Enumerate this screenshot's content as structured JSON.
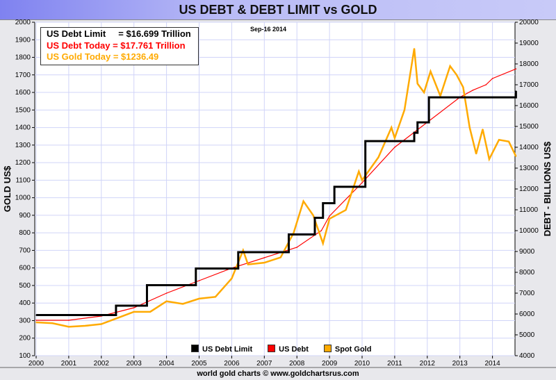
{
  "title": "US DEBT & DEBT LIMIT vs GOLD",
  "date_label": "Sep-16  2014",
  "info": {
    "limit": "US Debt Limit     = $16.699 Trillion",
    "debt": "US Debt Today = $17.761 Trillion",
    "gold": "US Gold Today = $1236.49"
  },
  "credit": "world gold charts © www.goldchartsrus.com",
  "colors": {
    "limit": "#000000",
    "debt": "#ff0000",
    "gold": "#ffaa00",
    "grid": "#d0d4f8"
  },
  "chart_data": {
    "type": "line",
    "ylabel_left": "GOLD US$",
    "ylabel_right": "DEBT - BILLIONS US$",
    "ylim_left": [
      100,
      2000
    ],
    "ylim_right": [
      4000,
      20000
    ],
    "xlim": [
      2000,
      2014.72
    ],
    "x_ticks": [
      "2000",
      "2001",
      "2002",
      "2003",
      "2004",
      "2005",
      "2006",
      "2007",
      "2008",
      "2009",
      "2010",
      "2011",
      "2012",
      "2013",
      "2014"
    ],
    "y_ticks_left": [
      100,
      200,
      300,
      400,
      500,
      600,
      700,
      800,
      900,
      1000,
      1100,
      1200,
      1300,
      1400,
      1500,
      1600,
      1700,
      1800,
      1900,
      2000
    ],
    "y_ticks_right": [
      4000,
      5000,
      6000,
      7000,
      8000,
      9000,
      10000,
      11000,
      12000,
      13000,
      14000,
      15000,
      16000,
      17000,
      18000,
      19000,
      20000
    ],
    "grid": true,
    "legend_position": "bottom",
    "series": [
      {
        "name": "US Debt Limit",
        "axis": "right",
        "step": true,
        "x": [
          2000,
          2002.45,
          2003.4,
          2004.9,
          2006.2,
          2007.75,
          2008.55,
          2008.8,
          2009.15,
          2010.1,
          2011.6,
          2011.7,
          2012.05,
          2014.72
        ],
        "y": [
          5950,
          6400,
          7384,
          8184,
          8965,
          9815,
          10615,
          11315,
          12104,
          14294,
          14694,
          15194,
          16394,
          16699
        ]
      },
      {
        "name": "US Debt",
        "axis": "right",
        "x": [
          2000,
          2001,
          2002,
          2003,
          2004,
          2005,
          2006,
          2007,
          2008,
          2008.75,
          2009,
          2010,
          2011,
          2012,
          2013,
          2013.4,
          2013.8,
          2014,
          2014.72
        ],
        "y": [
          5700,
          5700,
          5900,
          6300,
          7000,
          7600,
          8200,
          8700,
          9200,
          10000,
          10700,
          12300,
          14000,
          15200,
          16400,
          16740,
          17000,
          17300,
          17761
        ]
      },
      {
        "name": "Spot Gold",
        "axis": "left",
        "x": [
          2000,
          2000.5,
          2001,
          2001.5,
          2002,
          2002.5,
          2003,
          2003.5,
          2004,
          2004.5,
          2005,
          2005.5,
          2006,
          2006.35,
          2006.5,
          2007,
          2007.5,
          2007.9,
          2008.2,
          2008.5,
          2008.8,
          2009,
          2009.5,
          2009.9,
          2010,
          2010.5,
          2010.9,
          2011,
          2011.3,
          2011.6,
          2011.7,
          2011.9,
          2012.1,
          2012.4,
          2012.7,
          2012.9,
          2013.1,
          2013.3,
          2013.5,
          2013.7,
          2013.9,
          2014.2,
          2014.5,
          2014.72
        ],
        "y": [
          290,
          285,
          265,
          270,
          280,
          315,
          350,
          350,
          410,
          395,
          425,
          435,
          540,
          700,
          620,
          630,
          660,
          800,
          980,
          900,
          740,
          880,
          930,
          1150,
          1100,
          1230,
          1400,
          1340,
          1500,
          1850,
          1650,
          1600,
          1720,
          1580,
          1750,
          1700,
          1630,
          1400,
          1250,
          1390,
          1220,
          1330,
          1320,
          1236
        ]
      }
    ]
  }
}
